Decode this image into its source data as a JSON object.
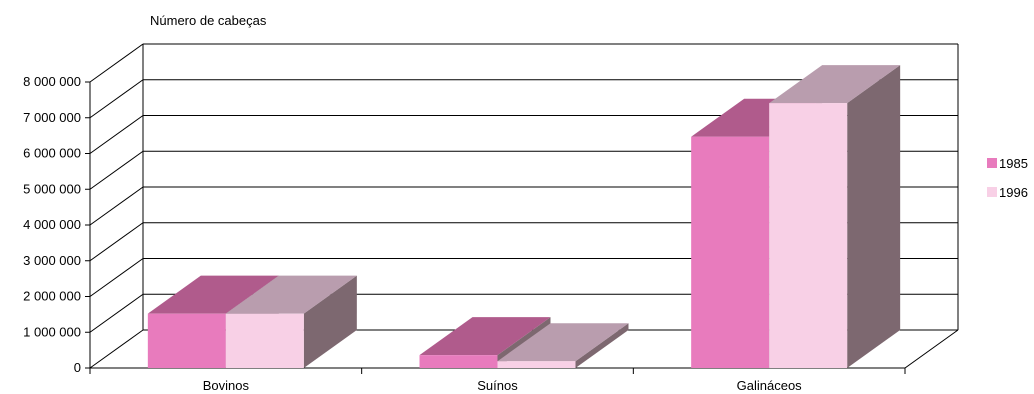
{
  "chart_data": {
    "type": "bar",
    "title": "",
    "ylabel": "Número de cabeças",
    "xlabel": "",
    "categories": [
      "Bovinos",
      "Suínos",
      "Galináceos"
    ],
    "series": [
      {
        "name": "1985",
        "values": [
          1520000,
          360000,
          6470000
        ],
        "color": "#e87bbd"
      },
      {
        "name": "1996",
        "values": [
          1520000,
          190000,
          7410000
        ],
        "color": "#f8d0e6"
      }
    ],
    "ylim": [
      0,
      8000000
    ],
    "yticks": [
      "0",
      "1 000 000",
      "2 000 000",
      "3 000 000",
      "4 000 000",
      "5 000 000",
      "6 000 000",
      "7 000 000",
      "8 000 000"
    ],
    "grid": true,
    "legend": "right",
    "style": "3d"
  }
}
